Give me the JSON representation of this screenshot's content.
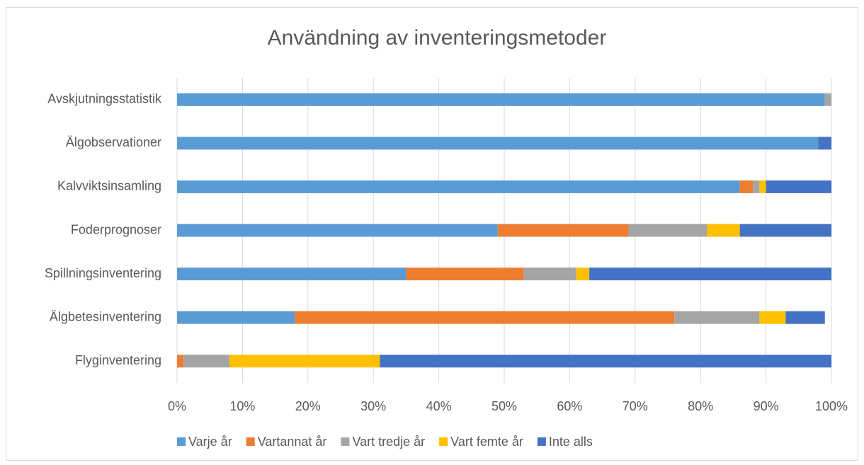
{
  "chart_data": {
    "type": "stacked_bar_horizontal",
    "title": "Användning av inventeringsmetoder",
    "categories": [
      "Avskjutningsstatistik",
      "Älgobservationer",
      "Kalvviktsinsamling",
      "Foderprognoser",
      "Spillningsinventering",
      "Älgbetesinventering",
      "Flyginventering"
    ],
    "series": [
      {
        "name": "Varje år",
        "color": "#5b9bd5",
        "values": [
          99,
          98,
          86,
          49,
          35,
          18,
          0
        ]
      },
      {
        "name": "Vartannat år",
        "color": "#ed7d31",
        "values": [
          0,
          0,
          2,
          20,
          18,
          58,
          1
        ]
      },
      {
        "name": "Vart tredje år",
        "color": "#a5a5a5",
        "values": [
          1,
          0,
          1,
          12,
          8,
          13,
          7
        ]
      },
      {
        "name": "Vart femte år",
        "color": "#ffc000",
        "values": [
          0,
          0,
          1,
          5,
          2,
          4,
          23
        ]
      },
      {
        "name": "Inte alls",
        "color": "#4472c4",
        "values": [
          0,
          2,
          10,
          14,
          37,
          6,
          69
        ]
      }
    ],
    "xlim": [
      0,
      100
    ],
    "xticks": [
      {
        "value": 0,
        "label": "0%"
      },
      {
        "value": 10,
        "label": "10%"
      },
      {
        "value": 20,
        "label": "20%"
      },
      {
        "value": 30,
        "label": "30%"
      },
      {
        "value": 40,
        "label": "40%"
      },
      {
        "value": 50,
        "label": "50%"
      },
      {
        "value": 60,
        "label": "60%"
      },
      {
        "value": 70,
        "label": "70%"
      },
      {
        "value": 80,
        "label": "80%"
      },
      {
        "value": 90,
        "label": "90%"
      },
      {
        "value": 100,
        "label": "100%"
      }
    ],
    "grid": true,
    "legend": "bottom"
  }
}
